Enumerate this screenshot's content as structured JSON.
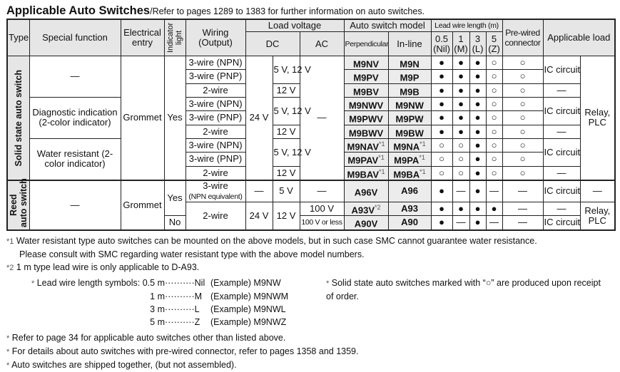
{
  "title": {
    "main": "Applicable Auto Switches",
    "sub": "/Refer to pages 1289 to 1383 for further information on auto switches."
  },
  "header": {
    "type": "Type",
    "special_function": "Special function",
    "electrical_entry_1": "Electrical",
    "electrical_entry_2": "entry",
    "indicator_light": "Indicator light",
    "wiring_1": "Wiring",
    "wiring_2": "(Output)",
    "load_voltage": "Load voltage",
    "dc": "DC",
    "ac": "AC",
    "auto_switch_model": "Auto switch model",
    "perpendicular": "Perpendicular",
    "in_line": "In-line",
    "lead_wire_length": "Lead wire length (m)",
    "lw": [
      {
        "v": "0.5",
        "s": "(Nil)"
      },
      {
        "v": "1",
        "s": "(M)"
      },
      {
        "v": "3",
        "s": "(L)"
      },
      {
        "v": "5",
        "s": "(Z)"
      }
    ],
    "pre_wired_1": "Pre-wired",
    "pre_wired_2": "connector",
    "applicable_load": "Applicable load"
  },
  "solid": {
    "type": "Solid state auto switch",
    "functions": [
      "—",
      "Diagnostic indication (2-color indicator)",
      "Water resistant (2-color indicator)"
    ],
    "entry": "Grommet",
    "indicator": "Yes",
    "dc24": "24 V",
    "dc_5_12": "5 V, 12 V",
    "dc_12": "12 V",
    "ac": "—",
    "ic": "IC circuit",
    "dash": "—",
    "relay": "Relay, PLC",
    "rows": [
      {
        "wiring": "3-wire (NPN)",
        "perp": "M9NV",
        "pn": "",
        "inline": "M9N",
        "in": "",
        "leads": [
          "●",
          "●",
          "●",
          "○"
        ],
        "pw": "○"
      },
      {
        "wiring": "3-wire (PNP)",
        "perp": "M9PV",
        "pn": "",
        "inline": "M9P",
        "in": "",
        "leads": [
          "●",
          "●",
          "●",
          "○"
        ],
        "pw": "○"
      },
      {
        "wiring": "2-wire",
        "perp": "M9BV",
        "pn": "",
        "inline": "M9B",
        "in": "",
        "leads": [
          "●",
          "●",
          "●",
          "○"
        ],
        "pw": "○"
      },
      {
        "wiring": "3-wire (NPN)",
        "perp": "M9NWV",
        "pn": "",
        "inline": "M9NW",
        "in": "",
        "leads": [
          "●",
          "●",
          "●",
          "○"
        ],
        "pw": "○"
      },
      {
        "wiring": "3-wire (PNP)",
        "perp": "M9PWV",
        "pn": "",
        "inline": "M9PW",
        "in": "",
        "leads": [
          "●",
          "●",
          "●",
          "○"
        ],
        "pw": "○"
      },
      {
        "wiring": "2-wire",
        "perp": "M9BWV",
        "pn": "",
        "inline": "M9BW",
        "in": "",
        "leads": [
          "●",
          "●",
          "●",
          "○"
        ],
        "pw": "○"
      },
      {
        "wiring": "3-wire (NPN)",
        "perp": "M9NAV",
        "pn": "*1",
        "inline": "M9NA",
        "in": "*1",
        "leads": [
          "○",
          "○",
          "●",
          "○"
        ],
        "pw": "○"
      },
      {
        "wiring": "3-wire (PNP)",
        "perp": "M9PAV",
        "pn": "*1",
        "inline": "M9PA",
        "in": "*1",
        "leads": [
          "○",
          "○",
          "●",
          "○"
        ],
        "pw": "○"
      },
      {
        "wiring": "2-wire",
        "perp": "M9BAV",
        "pn": "*1",
        "inline": "M9BA",
        "in": "*1",
        "leads": [
          "○",
          "○",
          "●",
          "○"
        ],
        "pw": "○"
      }
    ]
  },
  "reed": {
    "type_1": "Reed",
    "type_2": "auto switch",
    "function": "—",
    "entry": "Grommet",
    "yes": "Yes",
    "no": "No",
    "wiring_3": "3-wire",
    "wiring_3_sub": "(NPN equivalent)",
    "wiring_2": "2-wire",
    "dash": "—",
    "v5": "5 V",
    "v24": "24 V",
    "v12": "12 V",
    "ac100": "100 V",
    "ac100less": "100 V or less",
    "ic": "IC circuit",
    "relay": "Relay, PLC",
    "rows": [
      {
        "perp": "A96V",
        "pn": "",
        "inline": "A96",
        "leads": [
          "●",
          "—",
          "●",
          "—"
        ],
        "pw": "—"
      },
      {
        "perp": "A93V",
        "pn": "*2",
        "inline": "A93",
        "leads": [
          "●",
          "●",
          "●",
          "●"
        ],
        "pw": "—"
      },
      {
        "perp": "A90V",
        "pn": "",
        "inline": "A90",
        "leads": [
          "●",
          "—",
          "●",
          "—"
        ],
        "pw": "—"
      }
    ]
  },
  "notes": {
    "n1_mark": "*1",
    "n1": "Water resistant type auto switches can be mounted on the above models, but in such case SMC cannot guarantee water resistance.",
    "n1b": "Please consult with SMC regarding water resistant type with the above model numbers.",
    "n2_mark": "*2",
    "n2": "1 m type lead wire is only applicable to D-A93.",
    "star": "*",
    "lead_label": "Lead wire length symbols:",
    "lead_rows": [
      {
        "len": "0.5 m",
        "sym": "Nil",
        "ex": "(Example) M9NW"
      },
      {
        "len": "1 m",
        "sym": "M",
        "ex": "(Example) M9NWM"
      },
      {
        "len": "3 m",
        "sym": "L",
        "ex": "(Example) M9NWL"
      },
      {
        "len": "5 m",
        "sym": "Z",
        "ex": "(Example) M9NWZ"
      }
    ],
    "solid_order": "Solid state auto switches marked with “○” are produced upon receipt of order.",
    "p1": "Refer to page 34 for applicable auto switches other than listed above.",
    "p2": "For details about auto switches with pre-wired connector, refer to pages 1358 and 1359.",
    "p3": "Auto switches are shipped together, (but not assembled)."
  }
}
